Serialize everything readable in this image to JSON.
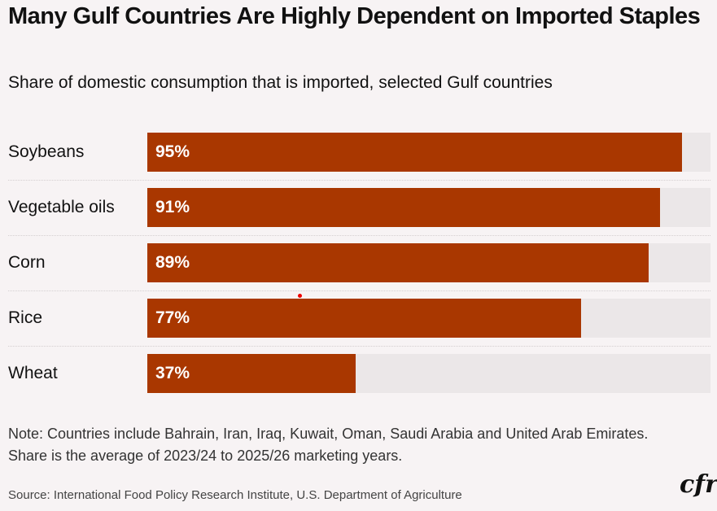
{
  "chart_data": {
    "type": "bar",
    "orientation": "horizontal",
    "title": "Many Gulf Countries Are Highly Dependent on Imported Staples",
    "subtitle": "Share of domestic consumption that is imported, selected Gulf countries",
    "categories": [
      "Soybeans",
      "Vegetable oils",
      "Corn",
      "Rice",
      "Wheat"
    ],
    "values": [
      95,
      91,
      89,
      77,
      37
    ],
    "value_labels": [
      "95%",
      "91%",
      "89%",
      "77%",
      "37%"
    ],
    "xlim": [
      0,
      100
    ],
    "unit": "%",
    "bar_color": "#a93700",
    "track_color": "#ebe7e8",
    "grid": false
  },
  "note": "Note: Countries include Bahrain, Iran, Iraq, Kuwait, Oman, Saudi Arabia and United Arab Emirates. Share is the average of 2023/24 to 2025/26 marketing years.",
  "source": "Source: International Food Policy Research Institute, U.S. Department of Agriculture",
  "logo": "cfr"
}
